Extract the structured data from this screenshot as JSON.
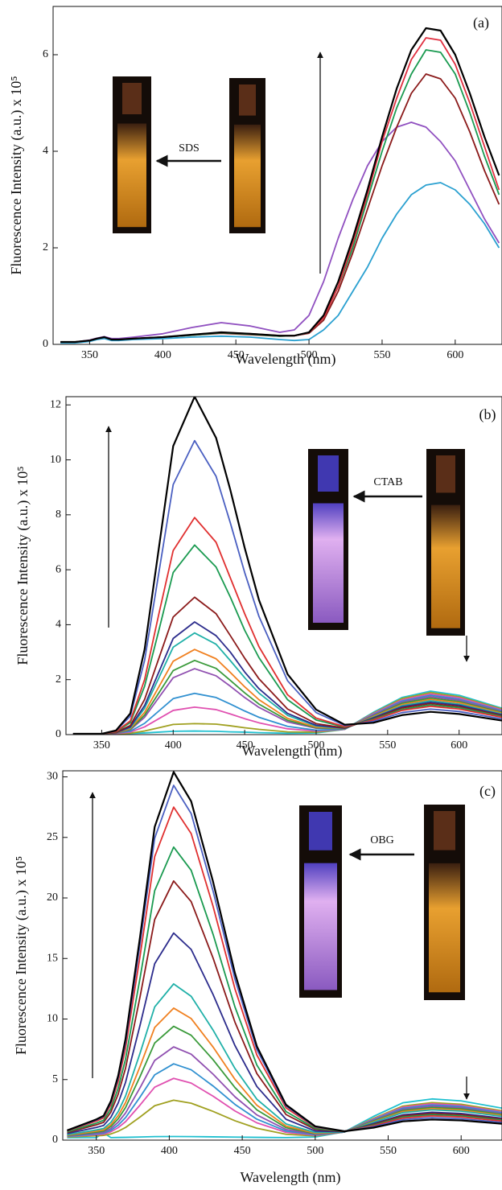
{
  "chart_data": [
    {
      "type": "line",
      "panel_label": "(a)",
      "annotation": "SDS",
      "x_label": "Wavelength (nm)",
      "y_label": "Fluorescence Intensity (a.u.) x 10⁵",
      "xlim": [
        325,
        632
      ],
      "ylim": [
        0,
        7
      ],
      "xticks": [
        350,
        400,
        450,
        500,
        550,
        600
      ],
      "yticks": [
        0,
        2,
        4,
        6
      ],
      "x": [
        330,
        340,
        350,
        355,
        360,
        365,
        370,
        380,
        400,
        420,
        440,
        460,
        480,
        490,
        500,
        510,
        520,
        530,
        540,
        550,
        560,
        570,
        580,
        590,
        600,
        610,
        620,
        630
      ],
      "series": [
        {
          "color": "#000000",
          "values": [
            0.05,
            0.05,
            0.08,
            0.12,
            0.15,
            0.1,
            0.1,
            0.12,
            0.15,
            0.2,
            0.25,
            0.22,
            0.18,
            0.18,
            0.25,
            0.6,
            1.3,
            2.2,
            3.2,
            4.3,
            5.3,
            6.1,
            6.55,
            6.5,
            6.0,
            5.2,
            4.3,
            3.5
          ]
        },
        {
          "color": "#e03040",
          "values": [
            0.05,
            0.05,
            0.08,
            0.12,
            0.15,
            0.1,
            0.1,
            0.12,
            0.15,
            0.2,
            0.25,
            0.22,
            0.18,
            0.18,
            0.24,
            0.55,
            1.2,
            2.1,
            3.1,
            4.2,
            5.1,
            5.9,
            6.35,
            6.3,
            5.8,
            5.0,
            4.1,
            3.2
          ]
        },
        {
          "color": "#1a9a50",
          "values": [
            0.05,
            0.05,
            0.08,
            0.12,
            0.15,
            0.1,
            0.1,
            0.12,
            0.15,
            0.19,
            0.24,
            0.21,
            0.17,
            0.18,
            0.24,
            0.55,
            1.2,
            2.0,
            3.0,
            4.0,
            4.9,
            5.6,
            6.1,
            6.05,
            5.6,
            4.8,
            3.9,
            3.1
          ]
        },
        {
          "color": "#8b1a1a",
          "values": [
            0.05,
            0.05,
            0.08,
            0.12,
            0.15,
            0.1,
            0.1,
            0.12,
            0.15,
            0.19,
            0.23,
            0.2,
            0.17,
            0.18,
            0.23,
            0.5,
            1.1,
            1.9,
            2.8,
            3.7,
            4.5,
            5.2,
            5.6,
            5.5,
            5.1,
            4.4,
            3.6,
            2.9
          ]
        },
        {
          "color": "#9050c0",
          "values": [
            0.05,
            0.05,
            0.09,
            0.13,
            0.16,
            0.12,
            0.12,
            0.15,
            0.22,
            0.35,
            0.45,
            0.38,
            0.25,
            0.3,
            0.6,
            1.3,
            2.2,
            3.0,
            3.7,
            4.2,
            4.5,
            4.6,
            4.5,
            4.2,
            3.8,
            3.2,
            2.6,
            2.1
          ]
        },
        {
          "color": "#2aa0d0",
          "values": [
            0.03,
            0.03,
            0.06,
            0.1,
            0.12,
            0.08,
            0.08,
            0.1,
            0.12,
            0.15,
            0.17,
            0.15,
            0.1,
            0.08,
            0.1,
            0.3,
            0.6,
            1.1,
            1.6,
            2.2,
            2.7,
            3.1,
            3.3,
            3.35,
            3.2,
            2.9,
            2.5,
            2.0
          ]
        }
      ]
    },
    {
      "type": "line",
      "panel_label": "(b)",
      "annotation": "CTAB",
      "x_label": "Wavelength (nm)",
      "y_label": "Fluorescence Intensity (a.u.) x 10⁵",
      "xlim": [
        325,
        630
      ],
      "ylim": [
        0,
        12.3
      ],
      "xticks": [
        350,
        400,
        450,
        500,
        550,
        600
      ],
      "yticks": [
        0,
        2,
        4,
        6,
        8,
        10,
        12
      ],
      "x": [
        330,
        350,
        360,
        370,
        380,
        390,
        400,
        415,
        430,
        440,
        450,
        460,
        480,
        500,
        520,
        540,
        560,
        580,
        600,
        630
      ],
      "series": [
        {
          "color": "#000000",
          "values": [
            0.03,
            0.03,
            0.15,
            0.77,
            3.1,
            6.8,
            10.5,
            12.3,
            10.8,
            8.9,
            6.8,
            4.9,
            2.2,
            0.91,
            0.36,
            0.43,
            0.71,
            0.83,
            0.75,
            0.51
          ]
        },
        {
          "color": "#4a5fc1",
          "values": [
            0.03,
            0.03,
            0.14,
            0.67,
            2.7,
            5.9,
            9.1,
            10.7,
            9.4,
            7.7,
            5.9,
            4.3,
            1.96,
            0.8,
            0.33,
            0.48,
            0.8,
            0.93,
            0.84,
            0.57
          ]
        },
        {
          "color": "#e03030",
          "values": [
            0.03,
            0.03,
            0.11,
            0.5,
            2.0,
            4.4,
            6.7,
            7.9,
            7.0,
            5.7,
            4.4,
            3.2,
            1.45,
            0.6,
            0.29,
            0.53,
            0.88,
            1.03,
            0.93,
            0.63
          ]
        },
        {
          "color": "#1a9a50",
          "values": [
            0.03,
            0.03,
            0.1,
            0.44,
            1.76,
            3.8,
            5.9,
            6.9,
            6.1,
            5.0,
            3.8,
            2.8,
            1.27,
            0.53,
            0.27,
            0.56,
            0.92,
            1.08,
            0.98,
            0.66
          ]
        },
        {
          "color": "#8b1a1a",
          "values": [
            0.03,
            0.03,
            0.08,
            0.33,
            1.28,
            2.78,
            4.28,
            5.0,
            4.4,
            3.6,
            2.78,
            2.03,
            0.93,
            0.4,
            0.24,
            0.58,
            0.97,
            1.13,
            1.02,
            0.69
          ]
        },
        {
          "color": "#2c2c8c",
          "values": [
            0.03,
            0.03,
            0.07,
            0.28,
            1.06,
            2.28,
            3.5,
            4.1,
            3.6,
            3.0,
            2.28,
            1.67,
            0.77,
            0.34,
            0.23,
            0.61,
            1.01,
            1.18,
            1.07,
            0.72
          ]
        },
        {
          "color": "#20b0a8",
          "values": [
            0.03,
            0.03,
            0.07,
            0.25,
            0.96,
            2.07,
            3.18,
            3.7,
            3.29,
            2.69,
            2.07,
            1.51,
            0.7,
            0.31,
            0.22,
            0.63,
            1.05,
            1.23,
            1.11,
            0.75
          ]
        },
        {
          "color": "#f08020",
          "values": [
            0.03,
            0.03,
            0.06,
            0.22,
            0.81,
            1.74,
            2.67,
            3.1,
            2.76,
            2.26,
            1.74,
            1.27,
            0.59,
            0.27,
            0.22,
            0.66,
            1.09,
            1.28,
            1.16,
            0.78
          ]
        },
        {
          "color": "#3a9a3a",
          "values": [
            0.03,
            0.03,
            0.06,
            0.19,
            0.71,
            1.52,
            2.33,
            2.7,
            2.41,
            1.97,
            1.52,
            1.11,
            0.52,
            0.25,
            0.21,
            0.68,
            1.14,
            1.33,
            1.2,
            0.81
          ]
        },
        {
          "color": "#9050b0",
          "values": [
            0.03,
            0.03,
            0.05,
            0.17,
            0.63,
            1.35,
            2.07,
            2.4,
            2.14,
            1.76,
            1.35,
            0.99,
            0.46,
            0.23,
            0.21,
            0.71,
            1.18,
            1.38,
            1.25,
            0.84
          ]
        },
        {
          "color": "#3090d0",
          "values": [
            0.03,
            0.03,
            0.05,
            0.12,
            0.41,
            0.86,
            1.31,
            1.5,
            1.35,
            1.11,
            0.86,
            0.63,
            0.3,
            0.16,
            0.2,
            0.73,
            1.22,
            1.43,
            1.29,
            0.87
          ]
        },
        {
          "color": "#e050b0",
          "values": [
            0.03,
            0.03,
            0.04,
            0.09,
            0.28,
            0.58,
            0.88,
            1.0,
            0.91,
            0.75,
            0.58,
            0.43,
            0.21,
            0.13,
            0.19,
            0.76,
            1.26,
            1.48,
            1.34,
            0.9
          ]
        },
        {
          "color": "#a0a020",
          "values": [
            0.03,
            0.03,
            0.03,
            0.05,
            0.13,
            0.25,
            0.37,
            0.4,
            0.38,
            0.32,
            0.25,
            0.19,
            0.1,
            0.09,
            0.19,
            0.78,
            1.31,
            1.53,
            1.38,
            0.93
          ]
        },
        {
          "color": "#20c0d0",
          "values": [
            0.03,
            0.03,
            0.03,
            0.04,
            0.06,
            0.09,
            0.12,
            0.13,
            0.12,
            0.1,
            0.09,
            0.07,
            0.05,
            0.06,
            0.19,
            0.81,
            1.35,
            1.58,
            1.43,
            0.96
          ]
        }
      ]
    },
    {
      "type": "line",
      "panel_label": "(c)",
      "annotation": "OBG",
      "x_label": "Wavelength (nm)",
      "y_label": "Fluorescence Intensity (a.u.) x 10⁵",
      "xlim": [
        327,
        628
      ],
      "ylim": [
        0,
        30.5
      ],
      "xticks": [
        350,
        400,
        450,
        500,
        550,
        600
      ],
      "yticks": [
        0,
        5,
        10,
        15,
        20,
        25,
        30
      ],
      "x": [
        330,
        350,
        355,
        360,
        365,
        370,
        380,
        390,
        403,
        415,
        430,
        445,
        460,
        480,
        500,
        520,
        540,
        560,
        580,
        600,
        630
      ],
      "series": [
        {
          "color": "#000000",
          "values": [
            0.8,
            1.71,
            2.01,
            3.22,
            5.33,
            8.35,
            16.81,
            25.87,
            30.4,
            27.98,
            21.34,
            13.79,
            7.75,
            2.92,
            1.14,
            0.73,
            1.03,
            1.55,
            1.7,
            1.63,
            1.33
          ]
        },
        {
          "color": "#4a5fc1",
          "values": [
            0.78,
            1.66,
            1.95,
            3.11,
            5.15,
            8.06,
            16.21,
            24.94,
            29.3,
            26.97,
            20.57,
            13.3,
            7.48,
            2.82,
            1.1,
            0.74,
            1.11,
            1.69,
            1.85,
            1.77,
            1.44
          ]
        },
        {
          "color": "#e03030",
          "values": [
            0.75,
            1.57,
            1.84,
            2.93,
            4.84,
            7.57,
            15.22,
            23.41,
            27.5,
            25.32,
            19.31,
            12.49,
            7.03,
            2.66,
            1.06,
            0.74,
            1.19,
            1.82,
            2.0,
            1.91,
            1.55
          ]
        },
        {
          "color": "#1a9a50",
          "values": [
            0.68,
            1.4,
            1.64,
            2.6,
            4.28,
            6.68,
            13.4,
            20.6,
            24.2,
            22.28,
            17.0,
            11.0,
            6.2,
            2.36,
            0.96,
            0.72,
            1.25,
            1.91,
            2.1,
            2.0,
            1.63
          ]
        },
        {
          "color": "#8b1a1a",
          "values": [
            0.62,
            1.26,
            1.47,
            2.32,
            3.8,
            5.92,
            11.86,
            18.22,
            21.4,
            19.7,
            15.04,
            9.74,
            5.5,
            2.11,
            0.88,
            0.71,
            1.3,
            2.0,
            2.2,
            2.1,
            1.7
          ]
        },
        {
          "color": "#2c2c8c",
          "values": [
            0.54,
            1.05,
            1.21,
            1.89,
            3.07,
            4.76,
            9.5,
            14.57,
            17.1,
            15.75,
            12.03,
            7.81,
            4.43,
            1.72,
            0.75,
            0.69,
            1.36,
            2.09,
            2.3,
            2.2,
            1.78
          ]
        },
        {
          "color": "#20b0a8",
          "values": [
            0.45,
            0.84,
            0.96,
            1.47,
            2.36,
            3.63,
            7.19,
            11.0,
            12.9,
            11.88,
            9.09,
            5.92,
            3.38,
            1.34,
            0.63,
            0.67,
            1.47,
            2.27,
            2.5,
            2.39,
            1.93
          ]
        },
        {
          "color": "#f08020",
          "values": [
            0.41,
            0.74,
            0.84,
            1.27,
            2.02,
            3.09,
            6.09,
            9.3,
            10.9,
            10.04,
            7.69,
            5.02,
            2.88,
            1.16,
            0.57,
            0.67,
            1.52,
            2.36,
            2.6,
            2.48,
            2.0
          ]
        },
        {
          "color": "#3a9a3a",
          "values": [
            0.38,
            0.66,
            0.75,
            1.12,
            1.76,
            2.68,
            5.26,
            8.02,
            9.4,
            8.66,
            6.64,
            4.34,
            2.5,
            1.03,
            0.53,
            0.67,
            1.58,
            2.45,
            2.7,
            2.58,
            2.08
          ]
        },
        {
          "color": "#9050b0",
          "values": [
            0.35,
            0.58,
            0.65,
            0.95,
            1.48,
            2.23,
            4.33,
            6.58,
            7.7,
            7.1,
            5.45,
            3.58,
            2.08,
            0.88,
            0.48,
            0.67,
            1.63,
            2.54,
            2.8,
            2.67,
            2.15
          ]
        },
        {
          "color": "#3090d0",
          "values": [
            0.32,
            0.51,
            0.57,
            0.81,
            1.24,
            1.85,
            3.56,
            5.39,
            6.3,
            5.81,
            4.47,
            2.95,
            1.73,
            0.75,
            0.44,
            0.67,
            1.69,
            2.63,
            2.9,
            2.77,
            2.23
          ]
        },
        {
          "color": "#e050b0",
          "values": [
            0.3,
            0.45,
            0.49,
            0.69,
            1.03,
            1.52,
            2.9,
            4.37,
            5.1,
            4.71,
            3.63,
            2.41,
            1.43,
            0.64,
            0.4,
            0.67,
            1.74,
            2.72,
            3.0,
            2.86,
            2.3
          ]
        },
        {
          "color": "#a0a020",
          "values": [
            0.26,
            0.36,
            0.39,
            0.51,
            0.73,
            1.04,
            1.91,
            2.84,
            3.3,
            3.05,
            2.37,
            1.6,
            0.98,
            0.48,
            0.35,
            0.67,
            1.8,
            2.81,
            3.1,
            2.96,
            2.38
          ]
        },
        {
          "color": "#20c0d0",
          "values": [
            0.2,
            0.21,
            0.6,
            0.21,
            0.22,
            0.23,
            0.26,
            0.29,
            0.3,
            0.29,
            0.27,
            0.25,
            0.23,
            0.21,
            0.26,
            0.68,
            1.96,
            3.08,
            3.4,
            3.24,
            2.6
          ]
        }
      ]
    }
  ]
}
